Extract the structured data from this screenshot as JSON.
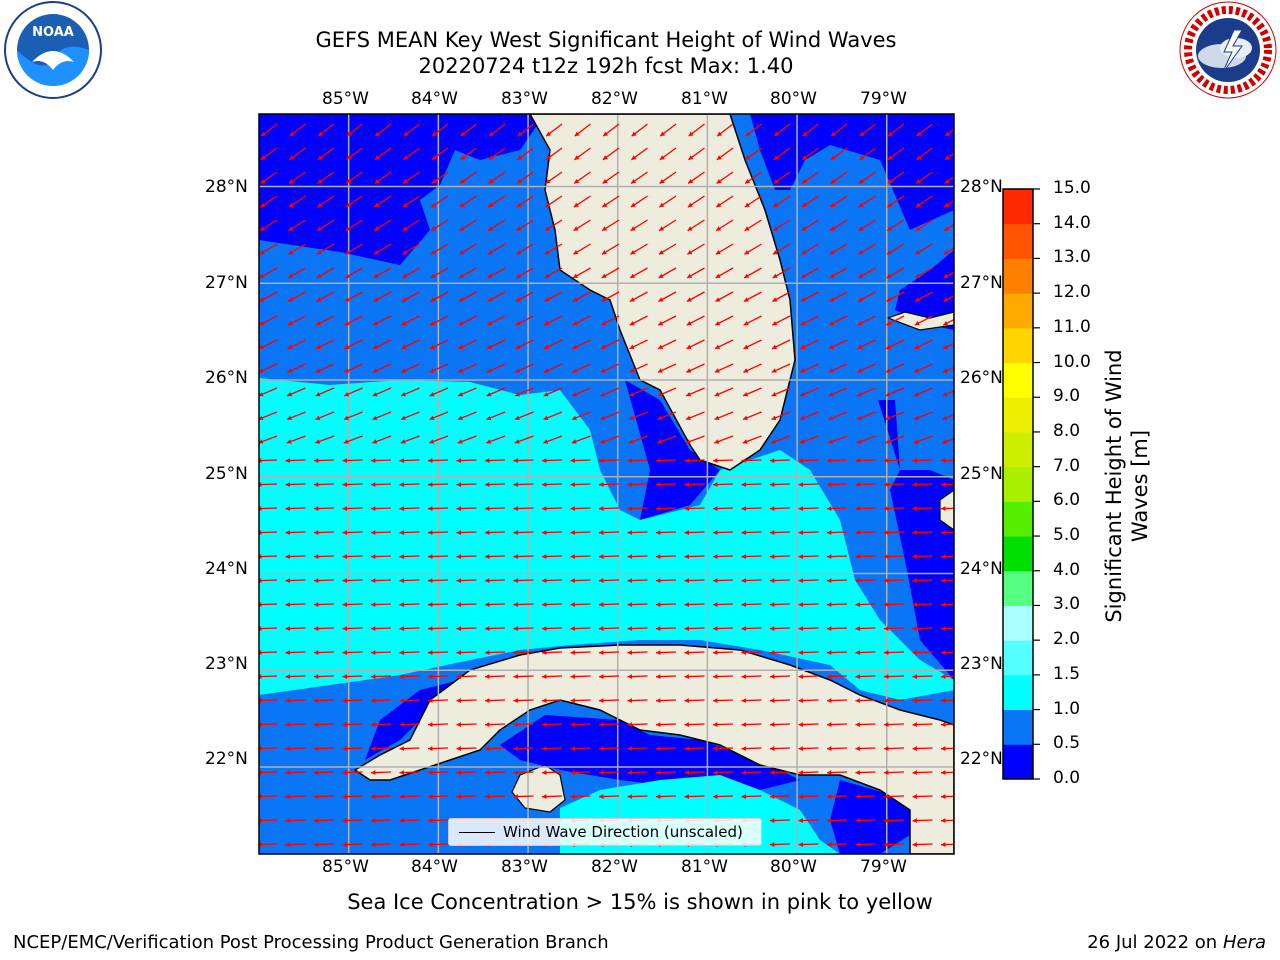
{
  "header": {
    "title_line1": "GEFS MEAN Key West Significant Height of Wind Waves",
    "title_line2": "20220724 t12z 192h fcst   Max: 1.40"
  },
  "logos": {
    "left": "NOAA",
    "right": "NATIONAL WEATHER SERVICE"
  },
  "map": {
    "lon_labels": [
      "85°W",
      "84°W",
      "83°W",
      "82°W",
      "81°W",
      "80°W",
      "79°W"
    ],
    "lat_labels": [
      "28°N",
      "27°N",
      "26°N",
      "25°N",
      "24°N",
      "23°N",
      "22°N"
    ],
    "lon_range": [
      -86.0,
      -78.25
    ],
    "lat_range": [
      21.1,
      28.75
    ],
    "legend_label": "Wind Wave Direction (unscaled)",
    "arrow_color": "#ff0000",
    "land_color": "#eeecdd"
  },
  "colorbar": {
    "label": "Significant Height of Wind Waves [m]",
    "ticks": [
      "0.0",
      "0.5",
      "1.0",
      "1.5",
      "2.0",
      "3.0",
      "4.0",
      "5.0",
      "6.0",
      "7.0",
      "8.0",
      "9.0",
      "10.0",
      "11.0",
      "12.0",
      "13.0",
      "14.0",
      "15.0"
    ],
    "colors": [
      "#0000ff",
      "#0a75f5",
      "#00ffff",
      "#55ffff",
      "#aaffff",
      "#55ff80",
      "#00e000",
      "#55ee00",
      "#aaee00",
      "#ccee00",
      "#eeee00",
      "#ffff00",
      "#ffd500",
      "#ffaa00",
      "#ff8000",
      "#ff5500",
      "#ff2a00",
      "#ff0000"
    ]
  },
  "footer": {
    "note": "Sea Ice Concentration > 15% is shown in pink to yellow",
    "left": "NCEP/EMC/Verification Post Processing Product Generation Branch",
    "right_date": "26 Jul 2022 on ",
    "right_host": "Hera"
  }
}
